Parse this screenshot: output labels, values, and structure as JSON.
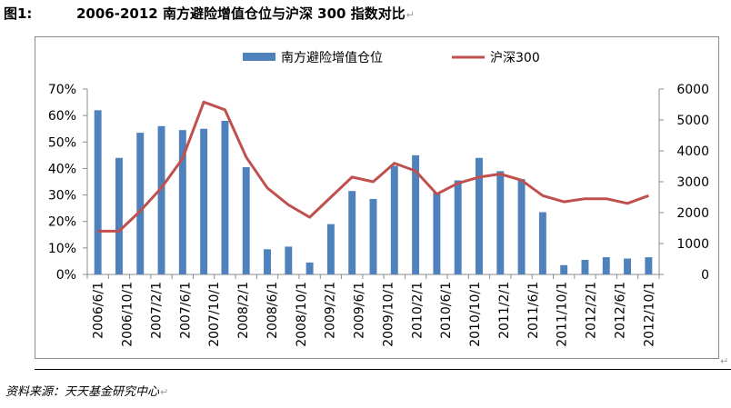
{
  "caption": {
    "number": "图1:",
    "title": "2006-2012 南方避险增值仓位与沪深 300 指数对比"
  },
  "source_text": "资料来源：天天基金研究中心",
  "chart_data": {
    "type": "bar+line",
    "title": "",
    "xlabel": "",
    "ylabel": "",
    "legend_position": "top-center",
    "grid": false,
    "colors": {
      "bar": "#4f81bd",
      "line": "#c0504d",
      "axis": "#8c8c8c"
    },
    "x_tick_labels": [
      "2006/6/1",
      "2006/10/1",
      "2007/2/1",
      "2007/6/1",
      "2007/10/1",
      "2008/2/1",
      "2008/6/1",
      "2008/10/1",
      "2009/2/1",
      "2009/6/1",
      "2009/10/1",
      "2010/2/1",
      "2010/6/1",
      "2010/10/1",
      "2011/2/1",
      "2011/6/1",
      "2011/10/1",
      "2012/2/1",
      "2012/6/1",
      "2012/10/1"
    ],
    "y_left": {
      "min": 0,
      "max": 70,
      "step": 10,
      "tick_labels": [
        "0%",
        "10%",
        "20%",
        "30%",
        "40%",
        "50%",
        "60%",
        "70%"
      ]
    },
    "y_right": {
      "min": 0,
      "max": 6000,
      "step": 1000,
      "tick_labels": [
        "0",
        "1000",
        "2000",
        "3000",
        "4000",
        "5000",
        "6000"
      ]
    },
    "series": [
      {
        "name": "南方避险增值仓位",
        "kind": "bar",
        "axis": "left",
        "values": [
          62,
          44,
          53.5,
          56,
          54.5,
          55,
          58,
          40.5,
          9.5,
          10.5,
          4.5,
          19,
          31.5,
          28.5,
          41,
          45,
          31,
          35.5,
          44,
          39,
          36,
          23.5,
          3.5,
          5.5,
          6.5,
          6,
          6.5
        ]
      },
      {
        "name": "沪深300",
        "kind": "line",
        "axis": "right",
        "values": [
          1400,
          1400,
          2050,
          2800,
          3750,
          5580,
          5330,
          3800,
          2800,
          2250,
          1850,
          2500,
          3150,
          3000,
          3600,
          3350,
          2600,
          2950,
          3150,
          3250,
          3050,
          2550,
          2350,
          2450,
          2450,
          2300,
          2550
        ]
      }
    ]
  }
}
